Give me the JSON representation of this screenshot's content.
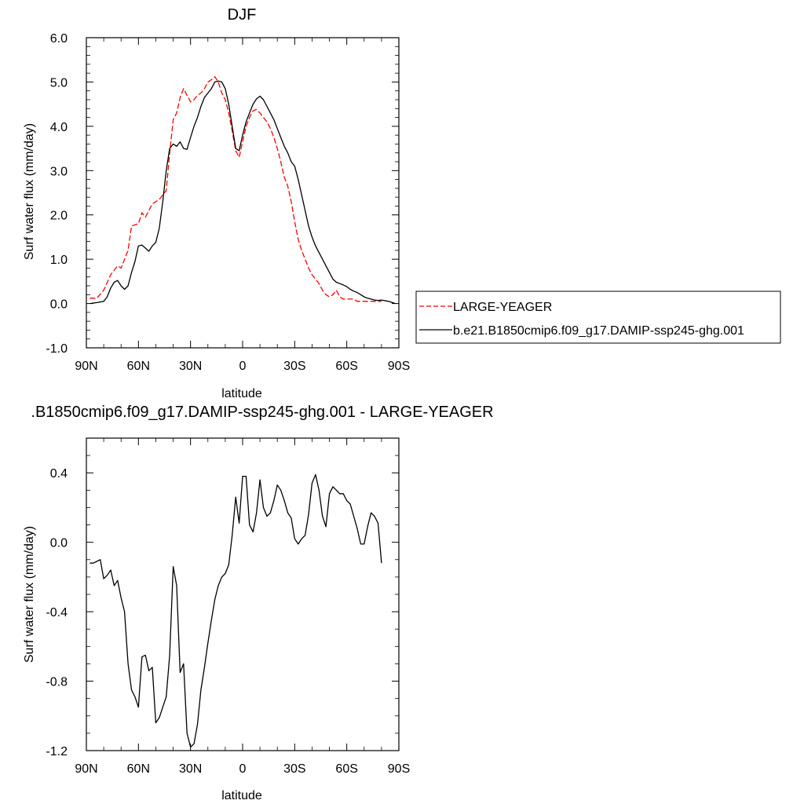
{
  "chart_data": [
    {
      "type": "line",
      "title": "DJF",
      "xlabel": "latitude",
      "ylabel": "Surf water flux (mm/day)",
      "xlim": [
        90,
        -90
      ],
      "ylim": [
        -1.0,
        6.0
      ],
      "x_ticks": [
        90,
        60,
        30,
        0,
        -30,
        -60,
        -90
      ],
      "x_tick_labels": [
        "90N",
        "60N",
        "30N",
        "0",
        "30S",
        "60S",
        "90S"
      ],
      "y_ticks": [
        -1.0,
        0.0,
        1.0,
        2.0,
        3.0,
        4.0,
        5.0,
        6.0
      ],
      "y_tick_labels": [
        "-1.0",
        "0.0",
        "1.0",
        "2.0",
        "3.0",
        "4.0",
        "5.0",
        "6.0"
      ],
      "legend_position": "right",
      "series": [
        {
          "name": "LARGE-YEAGER",
          "color": "#ff0000",
          "dash": true,
          "x": [
            88,
            84,
            80,
            76,
            72,
            70,
            66,
            64,
            60,
            58,
            56,
            52,
            48,
            44,
            42,
            40,
            38,
            36,
            34,
            32,
            30,
            28,
            26,
            24,
            22,
            20,
            18,
            16,
            14,
            12,
            10,
            8,
            6,
            4,
            2,
            0,
            -2,
            -4,
            -6,
            -8,
            -10,
            -12,
            -14,
            -16,
            -18,
            -20,
            -22,
            -24,
            -26,
            -28,
            -30,
            -32,
            -34,
            -36,
            -38,
            -40,
            -42,
            -44,
            -46,
            -48,
            -50,
            -52,
            -54,
            -56,
            -58,
            -60,
            -62,
            -64,
            -66,
            -68,
            -70,
            -72,
            -74,
            -76,
            -78,
            -80
          ],
          "values": [
            0.12,
            0.12,
            0.3,
            0.65,
            0.85,
            0.8,
            1.2,
            1.75,
            1.8,
            2.05,
            1.95,
            2.25,
            2.35,
            2.55,
            3.4,
            4.15,
            4.3,
            4.65,
            4.85,
            4.7,
            4.55,
            4.6,
            4.7,
            4.75,
            4.85,
            5.0,
            5.05,
            5.12,
            5.0,
            4.75,
            4.6,
            4.3,
            3.9,
            3.45,
            3.3,
            3.65,
            4.0,
            4.2,
            4.35,
            4.38,
            4.3,
            4.2,
            4.1,
            3.95,
            3.75,
            3.5,
            3.2,
            2.85,
            2.65,
            2.3,
            1.85,
            1.45,
            1.2,
            1.0,
            0.8,
            0.65,
            0.55,
            0.45,
            0.3,
            0.2,
            0.15,
            0.2,
            0.3,
            0.15,
            0.1,
            0.1,
            0.1,
            0.1,
            0.05,
            0.05,
            0.05,
            0.05,
            0.05,
            0.05,
            0.05,
            0.05
          ]
        },
        {
          "name": "b.e21.B1850cmip6.f09_g17.DAMIP-ssp245-ghg.001",
          "color": "#000000",
          "dash": false,
          "x": [
            88,
            84,
            80,
            78,
            76,
            74,
            72,
            70,
            68,
            66,
            64,
            62,
            60,
            58,
            56,
            54,
            52,
            50,
            48,
            46,
            44,
            42,
            40,
            38,
            36,
            34,
            32,
            30,
            28,
            26,
            24,
            22,
            20,
            18,
            16,
            14,
            12,
            10,
            8,
            6,
            4,
            2,
            0,
            -2,
            -4,
            -6,
            -8,
            -10,
            -12,
            -14,
            -16,
            -18,
            -20,
            -22,
            -24,
            -26,
            -28,
            -30,
            -32,
            -34,
            -36,
            -38,
            -40,
            -42,
            -44,
            -46,
            -48,
            -50,
            -52,
            -54,
            -56,
            -58,
            -60,
            -62,
            -64,
            -66,
            -68,
            -70,
            -72,
            -74,
            -76,
            -78,
            -80,
            -84,
            -88
          ],
          "values": [
            0.0,
            0.02,
            0.05,
            0.15,
            0.35,
            0.48,
            0.52,
            0.4,
            0.32,
            0.4,
            0.7,
            0.95,
            1.3,
            1.32,
            1.25,
            1.18,
            1.3,
            1.38,
            1.7,
            2.3,
            3.0,
            3.5,
            3.6,
            3.55,
            3.65,
            3.5,
            3.48,
            3.75,
            4.0,
            4.2,
            4.45,
            4.65,
            4.75,
            4.85,
            5.0,
            5.02,
            5.0,
            4.85,
            4.5,
            4.0,
            3.5,
            3.45,
            3.8,
            4.1,
            4.3,
            4.5,
            4.62,
            4.68,
            4.6,
            4.45,
            4.3,
            4.15,
            3.95,
            3.75,
            3.55,
            3.4,
            3.2,
            3.1,
            2.8,
            2.45,
            2.1,
            1.75,
            1.5,
            1.3,
            1.15,
            1.0,
            0.85,
            0.7,
            0.55,
            0.48,
            0.45,
            0.42,
            0.38,
            0.32,
            0.28,
            0.25,
            0.2,
            0.15,
            0.12,
            0.1,
            0.08,
            0.07,
            0.08,
            0.05,
            0.0
          ]
        }
      ]
    },
    {
      "type": "line",
      "title": ".B1850cmip6.f09_g17.DAMIP-ssp245-ghg.001 - LARGE-YEAGER",
      "xlabel": "latitude",
      "ylabel": "Surf water flux (mm/day)",
      "xlim": [
        90,
        -90
      ],
      "ylim": [
        -1.2,
        0.6
      ],
      "x_ticks": [
        90,
        60,
        30,
        0,
        -30,
        -60,
        -90
      ],
      "x_tick_labels": [
        "90N",
        "60N",
        "30N",
        "0",
        "30S",
        "60S",
        "90S"
      ],
      "y_ticks": [
        -1.2,
        -0.8,
        -0.4,
        0.0,
        0.4
      ],
      "y_tick_labels": [
        "-1.2",
        "-0.8",
        "-0.4",
        "0.0",
        "0.4"
      ],
      "series": [
        {
          "color": "#000000",
          "dash": false,
          "x": [
            88,
            86,
            84,
            82,
            80,
            78,
            76,
            74,
            72,
            70,
            68,
            66,
            64,
            62,
            60,
            58,
            56,
            54,
            52,
            50,
            48,
            46,
            44,
            42,
            40,
            38,
            36,
            34,
            32,
            30,
            28,
            26,
            24,
            22,
            20,
            18,
            16,
            14,
            12,
            10,
            8,
            6,
            4,
            2,
            0,
            -2,
            -4,
            -6,
            -8,
            -10,
            -12,
            -14,
            -16,
            -18,
            -20,
            -22,
            -24,
            -26,
            -28,
            -30,
            -32,
            -34,
            -36,
            -38,
            -40,
            -42,
            -44,
            -46,
            -48,
            -50,
            -52,
            -54,
            -56,
            -58,
            -60,
            -62,
            -64,
            -66,
            -68,
            -70,
            -72,
            -74,
            -76,
            -78,
            -80
          ],
          "values": [
            -0.12,
            -0.12,
            -0.11,
            -0.1,
            -0.21,
            -0.19,
            -0.16,
            -0.25,
            -0.22,
            -0.32,
            -0.4,
            -0.7,
            -0.85,
            -0.89,
            -0.95,
            -0.66,
            -0.65,
            -0.74,
            -0.72,
            -1.04,
            -1.01,
            -0.95,
            -0.89,
            -0.65,
            -0.14,
            -0.25,
            -0.75,
            -0.7,
            -1.1,
            -1.18,
            -1.16,
            -1.05,
            -0.85,
            -0.72,
            -0.58,
            -0.45,
            -0.33,
            -0.25,
            -0.2,
            -0.18,
            -0.13,
            0.04,
            0.26,
            0.11,
            0.38,
            0.38,
            0.1,
            0.06,
            0.17,
            0.36,
            0.2,
            0.15,
            0.17,
            0.24,
            0.33,
            0.3,
            0.24,
            0.17,
            0.14,
            0.02,
            -0.01,
            0.02,
            0.04,
            0.16,
            0.34,
            0.39,
            0.3,
            0.15,
            0.09,
            0.28,
            0.32,
            0.3,
            0.28,
            0.28,
            0.24,
            0.22,
            0.15,
            0.08,
            -0.01,
            -0.01,
            0.09,
            0.17,
            0.15,
            0.11,
            -0.12
          ]
        }
      ]
    }
  ]
}
